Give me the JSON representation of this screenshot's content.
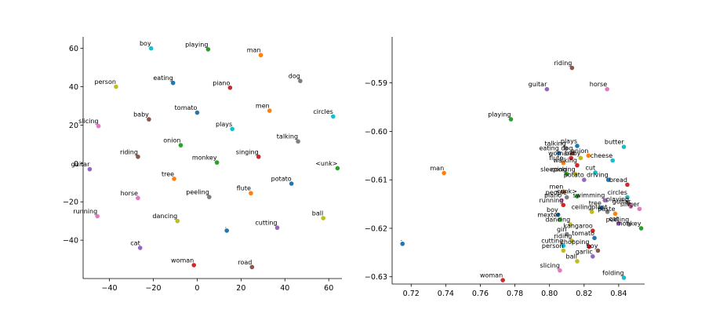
{
  "palette": [
    "#1f77b4",
    "#ff7f0e",
    "#2ca02c",
    "#d62728",
    "#9467bd",
    "#8c564b",
    "#e377c2",
    "#7f7f7f",
    "#bcbd22",
    "#17becf"
  ],
  "chart_data": [
    {
      "type": "scatter",
      "title": "",
      "xlabel": "",
      "ylabel": "",
      "xlim": [
        -52,
        66
      ],
      "ylim": [
        -60,
        66
      ],
      "xticks": [
        "−40",
        "−20",
        "0",
        "20",
        "40",
        "60"
      ],
      "xtick_values": [
        -40,
        -20,
        0,
        20,
        40,
        60
      ],
      "yticks": [
        "−40",
        "−20",
        "0",
        "20",
        "40",
        "60"
      ],
      "ytick_values": [
        -40,
        -20,
        0,
        20,
        40,
        60
      ],
      "grid": false,
      "points": [
        {
          "label": "boy",
          "x": -21,
          "y": 60,
          "color": "#17becf"
        },
        {
          "label": "playing",
          "x": 5,
          "y": 59.5,
          "color": "#2ca02c"
        },
        {
          "label": "man",
          "x": 29,
          "y": 56.5,
          "color": "#ff7f0e"
        },
        {
          "label": "person",
          "x": -37,
          "y": 40,
          "color": "#bcbd22"
        },
        {
          "label": "eating",
          "x": -11,
          "y": 42,
          "color": "#1f77b4"
        },
        {
          "label": "piano",
          "x": 15,
          "y": 39.5,
          "color": "#d62728"
        },
        {
          "label": "dog",
          "x": 47,
          "y": 43,
          "color": "#7f7f7f"
        },
        {
          "label": "tomato",
          "x": 0,
          "y": 26.5,
          "color": "#1f77b4"
        },
        {
          "label": "baby",
          "x": -22,
          "y": 23,
          "color": "#8c564b"
        },
        {
          "label": "men",
          "x": 33,
          "y": 27.5,
          "color": "#ff7f0e"
        },
        {
          "label": "circles",
          "x": 62,
          "y": 24.5,
          "color": "#17becf"
        },
        {
          "label": "slicing",
          "x": -45,
          "y": 19.5,
          "color": "#e377c2"
        },
        {
          "label": "plays",
          "x": 16,
          "y": 18,
          "color": "#17becf"
        },
        {
          "label": "talking",
          "x": 46,
          "y": 11.5,
          "color": "#7f7f7f"
        },
        {
          "label": "onion",
          "x": -7.5,
          "y": 9.5,
          "color": "#2ca02c"
        },
        {
          "label": "riding",
          "x": -27,
          "y": 3.5,
          "color": "#8c564b"
        },
        {
          "label": "monkey",
          "x": 9,
          "y": 0.5,
          "color": "#2ca02c"
        },
        {
          "label": "singing",
          "x": 28,
          "y": 3.5,
          "color": "#d62728"
        },
        {
          "label": "guitar",
          "x": -49,
          "y": -3,
          "color": "#9467bd"
        },
        {
          "label": "<unk>",
          "x": 64,
          "y": -2.5,
          "color": "#2ca02c"
        },
        {
          "label": "tree",
          "x": -10.5,
          "y": -8,
          "color": "#ff7f0e"
        },
        {
          "label": "potato",
          "x": 43,
          "y": -10.5,
          "color": "#1f77b4"
        },
        {
          "label": "flute",
          "x": 24.5,
          "y": -15.5,
          "color": "#ff7f0e"
        },
        {
          "label": "peeling",
          "x": 5.5,
          "y": -17.5,
          "color": "#7f7f7f"
        },
        {
          "label": "horse",
          "x": -27,
          "y": -18,
          "color": "#e377c2"
        },
        {
          "label": "running",
          "x": -45.5,
          "y": -27.5,
          "color": "#e377c2"
        },
        {
          "label": "ball",
          "x": 57.5,
          "y": -28.5,
          "color": "#bcbd22"
        },
        {
          "label": "dancing",
          "x": -9,
          "y": -30,
          "color": "#bcbd22"
        },
        {
          "label": ".",
          "x": 13.5,
          "y": -35,
          "color": "#1f77b4"
        },
        {
          "label": "cutting",
          "x": 36.5,
          "y": -33.5,
          "color": "#9467bd"
        },
        {
          "label": "cat",
          "x": -26,
          "y": -44,
          "color": "#9467bd"
        },
        {
          "label": "woman",
          "x": -1.5,
          "y": -53,
          "color": "#d62728"
        },
        {
          "label": "road",
          "x": 25,
          "y": -54,
          "color": "#8c564b"
        }
      ]
    },
    {
      "type": "scatter",
      "title": "",
      "xlabel": "",
      "ylabel": "",
      "xlim": [
        0.709,
        0.855
      ],
      "ylim": [
        -0.6315,
        -0.5805
      ],
      "xticks": [
        "0.72",
        "0.74",
        "0.76",
        "0.78",
        "0.80",
        "0.82",
        "0.84"
      ],
      "xtick_values": [
        0.72,
        0.74,
        0.76,
        0.78,
        0.8,
        0.82,
        0.84
      ],
      "yticks": [
        "−0.59",
        "−0.60",
        "−0.61",
        "−0.62",
        "−0.63"
      ],
      "ytick_values": [
        -0.59,
        -0.6,
        -0.61,
        -0.62,
        -0.63
      ],
      "grid": false,
      "points": [
        {
          "label": "riding",
          "x": 0.813,
          "y": -0.5869,
          "color": "#8c564b"
        },
        {
          "label": "guitar",
          "x": 0.7985,
          "y": -0.5913,
          "color": "#9467bd"
        },
        {
          "label": "horse",
          "x": 0.8333,
          "y": -0.5913,
          "color": "#e377c2"
        },
        {
          "label": "playing",
          "x": 0.7777,
          "y": -0.5975,
          "color": "#2ca02c"
        },
        {
          "label": "butter",
          "x": 0.843,
          "y": -0.6032,
          "color": "#17becf"
        },
        {
          "label": "talking",
          "x": 0.8095,
          "y": -0.6035,
          "color": "#7f7f7f"
        },
        {
          "label": "plays",
          "x": 0.816,
          "y": -0.603,
          "color": "#1f77b4"
        },
        {
          "label": "dog",
          "x": 0.8135,
          "y": -0.6045,
          "color": "#8c564b"
        },
        {
          "label": "eating",
          "x": 0.8055,
          "y": -0.6045,
          "color": "#1f77b4"
        },
        {
          "label": "woman",
          "x": 0.8125,
          "y": -0.6055,
          "color": "#d62728"
        },
        {
          "label": "baby",
          "x": 0.818,
          "y": -0.6055,
          "color": "#bcbd22"
        },
        {
          "label": "onion",
          "x": 0.8225,
          "y": -0.605,
          "color": "#ff7f0e"
        },
        {
          "label": "cheese",
          "x": 0.8365,
          "y": -0.606,
          "color": "#17becf"
        },
        {
          "label": "flute",
          "x": 0.808,
          "y": -0.6065,
          "color": "#ff7f0e"
        },
        {
          "label": "walking",
          "x": 0.816,
          "y": -0.607,
          "color": "#d62728"
        },
        {
          "label": "cut",
          "x": 0.8265,
          "y": -0.6085,
          "color": "#17becf"
        },
        {
          "label": "sleeping",
          "x": 0.81,
          "y": -0.6088,
          "color": "#2ca02c"
        },
        {
          "label": "cooking",
          "x": 0.815,
          "y": -0.6088,
          "color": "#bcbd22"
        },
        {
          "label": "potato",
          "x": 0.82,
          "y": -0.61,
          "color": "#9467bd"
        },
        {
          "label": "driving",
          "x": 0.834,
          "y": -0.61,
          "color": "#1f77b4"
        },
        {
          "label": "bread",
          "x": 0.845,
          "y": -0.611,
          "color": "#d62728"
        },
        {
          "label": "man",
          "x": 0.739,
          "y": -0.6086,
          "color": "#ff7f0e"
        },
        {
          "label": "men",
          "x": 0.808,
          "y": -0.6124,
          "color": "#ff7f0e"
        },
        {
          "label": "people",
          "x": 0.81,
          "y": -0.6136,
          "color": "#7f7f7f"
        },
        {
          "label": "<unk>",
          "x": 0.816,
          "y": -0.6134,
          "color": "#2ca02c"
        },
        {
          "label": "circles",
          "x": 0.845,
          "y": -0.6136,
          "color": "#17becf"
        },
        {
          "label": "swimming",
          "x": 0.832,
          "y": -0.6142,
          "color": "#9467bd"
        },
        {
          "label": "playing",
          "x": 0.846,
          "y": -0.615,
          "color": "#8c564b"
        },
        {
          "label": "piano",
          "x": 0.807,
          "y": -0.6142,
          "color": "#e377c2"
        },
        {
          "label": "guitar",
          "x": 0.847,
          "y": -0.6155,
          "color": "#e377c2"
        },
        {
          "label": "running",
          "x": 0.808,
          "y": -0.6152,
          "color": "#d62728"
        },
        {
          "label": "tree",
          "x": 0.83,
          "y": -0.6158,
          "color": "#1f77b4"
        },
        {
          "label": "singer",
          "x": 0.852,
          "y": -0.616,
          "color": "#e377c2"
        },
        {
          "label": "ceiling",
          "x": 0.8245,
          "y": -0.6166,
          "color": "#bcbd22"
        },
        {
          "label": "plant",
          "x": 0.8335,
          "y": -0.6166,
          "color": "#7f7f7f"
        },
        {
          "label": "paste",
          "x": 0.838,
          "y": -0.617,
          "color": "#ff7f0e"
        },
        {
          "label": "boy",
          "x": 0.805,
          "y": -0.6172,
          "color": "#1f77b4"
        },
        {
          "label": "mexter",
          "x": 0.806,
          "y": -0.6182,
          "color": "#2ca02c"
        },
        {
          "label": "cat",
          "x": 0.84,
          "y": -0.619,
          "color": "#9467bd"
        },
        {
          "label": "peeling",
          "x": 0.846,
          "y": -0.6192,
          "color": "#7f7f7f"
        },
        {
          "label": "dancing",
          "x": 0.812,
          "y": -0.6192,
          "color": "#bcbd22"
        },
        {
          "label": "monkey",
          "x": 0.853,
          "y": -0.62,
          "color": "#2ca02c"
        },
        {
          "label": "kangaroo",
          "x": 0.825,
          "y": -0.6205,
          "color": "#d62728"
        },
        {
          "label": "girl",
          "x": 0.81,
          "y": -0.6212,
          "color": "#7f7f7f"
        },
        {
          "label": "tomato",
          "x": 0.826,
          "y": -0.622,
          "color": "#1f77b4"
        },
        {
          "label": "riding",
          "x": 0.813,
          "y": -0.6226,
          "color": "#bcbd22"
        },
        {
          "label": "cutting",
          "x": 0.808,
          "y": -0.6236,
          "color": "#17becf"
        },
        {
          "label": "chopping",
          "x": 0.823,
          "y": -0.6238,
          "color": "#d62728"
        },
        {
          "label": "boy",
          "x": 0.828,
          "y": -0.6246,
          "color": "#8c564b"
        },
        {
          "label": "person",
          "x": 0.808,
          "y": -0.6246,
          "color": "#bcbd22"
        },
        {
          "label": "garlic",
          "x": 0.825,
          "y": -0.6258,
          "color": "#9467bd"
        },
        {
          "label": "ball",
          "x": 0.816,
          "y": -0.6268,
          "color": "#bcbd22"
        },
        {
          "label": "slicing",
          "x": 0.806,
          "y": -0.6287,
          "color": "#e377c2"
        },
        {
          "label": "folding",
          "x": 0.843,
          "y": -0.6302,
          "color": "#17becf"
        },
        {
          "label": "woman",
          "x": 0.773,
          "y": -0.6307,
          "color": "#d62728"
        },
        {
          "label": ".",
          "x": 0.715,
          "y": -0.6232,
          "color": "#1f77b4"
        }
      ]
    }
  ]
}
